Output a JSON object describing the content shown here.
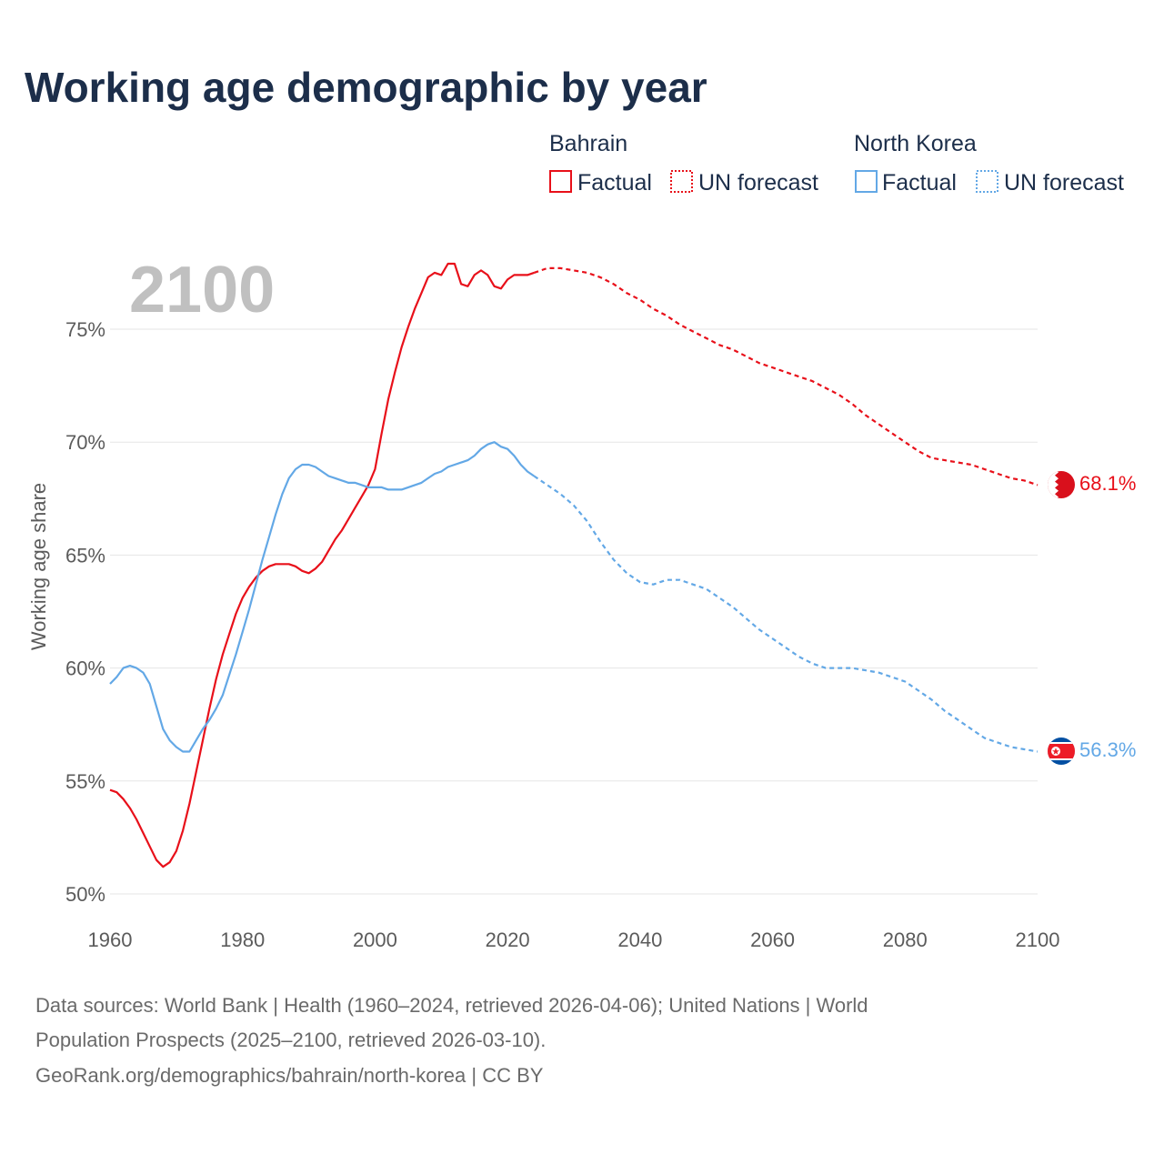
{
  "title": "Working age demographic by year",
  "year_label": "2100",
  "legend": {
    "groups": [
      {
        "country": "Bahrain",
        "color": "#e8101a",
        "factual": "Factual",
        "forecast": "UN forecast"
      },
      {
        "country": "North Korea",
        "color": "#63a8e6",
        "factual": "Factual",
        "forecast": "UN forecast"
      }
    ]
  },
  "sources": {
    "line1": "Data sources: World Bank | Health (1960–2024, retrieved 2026-04-06); United Nations | World",
    "line2": "Population Prospects (2025–2100, retrieved 2026-03-10).",
    "line3": "GeoRank.org/demographics/bahrain/north-korea | CC BY"
  },
  "chart_data": {
    "type": "line",
    "title": "Working age demographic by year",
    "xlabel": "",
    "ylabel": "Working age share",
    "xlim": [
      1960,
      2100
    ],
    "ylim": [
      50,
      78
    ],
    "x_ticks": [
      1960,
      1980,
      2000,
      2020,
      2040,
      2060,
      2080,
      2100
    ],
    "y_ticks": [
      50,
      55,
      60,
      65,
      70,
      75
    ],
    "y_tick_labels": [
      "50%",
      "55%",
      "60%",
      "65%",
      "70%",
      "75%"
    ],
    "grid": true,
    "forecast_start": 2024,
    "series": [
      {
        "name": "Bahrain",
        "color": "#e8101a",
        "end_label": "68.1%",
        "flag": "bahrain-flag",
        "points": [
          [
            1960,
            54.6
          ],
          [
            1961,
            54.5
          ],
          [
            1962,
            54.2
          ],
          [
            1963,
            53.8
          ],
          [
            1964,
            53.3
          ],
          [
            1965,
            52.7
          ],
          [
            1966,
            52.1
          ],
          [
            1967,
            51.5
          ],
          [
            1968,
            51.2
          ],
          [
            1969,
            51.4
          ],
          [
            1970,
            51.9
          ],
          [
            1971,
            52.8
          ],
          [
            1972,
            54.0
          ],
          [
            1973,
            55.4
          ],
          [
            1974,
            56.8
          ],
          [
            1975,
            58.2
          ],
          [
            1976,
            59.5
          ],
          [
            1977,
            60.6
          ],
          [
            1978,
            61.5
          ],
          [
            1979,
            62.4
          ],
          [
            1980,
            63.1
          ],
          [
            1981,
            63.6
          ],
          [
            1982,
            64.0
          ],
          [
            1983,
            64.3
          ],
          [
            1984,
            64.5
          ],
          [
            1985,
            64.6
          ],
          [
            1986,
            64.6
          ],
          [
            1987,
            64.6
          ],
          [
            1988,
            64.5
          ],
          [
            1989,
            64.3
          ],
          [
            1990,
            64.2
          ],
          [
            1991,
            64.4
          ],
          [
            1992,
            64.7
          ],
          [
            1993,
            65.2
          ],
          [
            1994,
            65.7
          ],
          [
            1995,
            66.1
          ],
          [
            1996,
            66.6
          ],
          [
            1997,
            67.1
          ],
          [
            1998,
            67.6
          ],
          [
            1999,
            68.1
          ],
          [
            2000,
            68.8
          ],
          [
            2001,
            70.4
          ],
          [
            2002,
            71.9
          ],
          [
            2003,
            73.1
          ],
          [
            2004,
            74.2
          ],
          [
            2005,
            75.1
          ],
          [
            2006,
            75.9
          ],
          [
            2007,
            76.6
          ],
          [
            2008,
            77.3
          ],
          [
            2009,
            77.5
          ],
          [
            2010,
            77.4
          ],
          [
            2011,
            77.9
          ],
          [
            2012,
            77.9
          ],
          [
            2013,
            77.0
          ],
          [
            2014,
            76.9
          ],
          [
            2015,
            77.4
          ],
          [
            2016,
            77.6
          ],
          [
            2017,
            77.4
          ],
          [
            2018,
            76.9
          ],
          [
            2019,
            76.8
          ],
          [
            2020,
            77.2
          ],
          [
            2021,
            77.4
          ],
          [
            2022,
            77.4
          ],
          [
            2023,
            77.4
          ],
          [
            2024,
            77.5
          ],
          [
            2026,
            77.7
          ],
          [
            2028,
            77.7
          ],
          [
            2030,
            77.6
          ],
          [
            2032,
            77.5
          ],
          [
            2034,
            77.3
          ],
          [
            2036,
            77.0
          ],
          [
            2038,
            76.6
          ],
          [
            2040,
            76.3
          ],
          [
            2042,
            75.9
          ],
          [
            2044,
            75.6
          ],
          [
            2046,
            75.2
          ],
          [
            2048,
            74.9
          ],
          [
            2050,
            74.6
          ],
          [
            2052,
            74.3
          ],
          [
            2054,
            74.1
          ],
          [
            2056,
            73.8
          ],
          [
            2058,
            73.5
          ],
          [
            2060,
            73.3
          ],
          [
            2062,
            73.1
          ],
          [
            2064,
            72.9
          ],
          [
            2066,
            72.7
          ],
          [
            2068,
            72.4
          ],
          [
            2070,
            72.1
          ],
          [
            2072,
            71.7
          ],
          [
            2074,
            71.2
          ],
          [
            2076,
            70.8
          ],
          [
            2078,
            70.4
          ],
          [
            2080,
            70.0
          ],
          [
            2082,
            69.6
          ],
          [
            2084,
            69.3
          ],
          [
            2086,
            69.2
          ],
          [
            2088,
            69.1
          ],
          [
            2090,
            69.0
          ],
          [
            2092,
            68.8
          ],
          [
            2094,
            68.6
          ],
          [
            2096,
            68.4
          ],
          [
            2098,
            68.3
          ],
          [
            2100,
            68.1
          ]
        ]
      },
      {
        "name": "North Korea",
        "color": "#63a8e6",
        "end_label": "56.3%",
        "flag": "north-korea-flag",
        "points": [
          [
            1960,
            59.3
          ],
          [
            1961,
            59.6
          ],
          [
            1962,
            60.0
          ],
          [
            1963,
            60.1
          ],
          [
            1964,
            60.0
          ],
          [
            1965,
            59.8
          ],
          [
            1966,
            59.3
          ],
          [
            1967,
            58.3
          ],
          [
            1968,
            57.3
          ],
          [
            1969,
            56.8
          ],
          [
            1970,
            56.5
          ],
          [
            1971,
            56.3
          ],
          [
            1972,
            56.3
          ],
          [
            1973,
            56.8
          ],
          [
            1974,
            57.3
          ],
          [
            1975,
            57.7
          ],
          [
            1976,
            58.2
          ],
          [
            1977,
            58.8
          ],
          [
            1978,
            59.7
          ],
          [
            1979,
            60.6
          ],
          [
            1980,
            61.6
          ],
          [
            1981,
            62.6
          ],
          [
            1982,
            63.7
          ],
          [
            1983,
            64.8
          ],
          [
            1984,
            65.8
          ],
          [
            1985,
            66.8
          ],
          [
            1986,
            67.7
          ],
          [
            1987,
            68.4
          ],
          [
            1988,
            68.8
          ],
          [
            1989,
            69.0
          ],
          [
            1990,
            69.0
          ],
          [
            1991,
            68.9
          ],
          [
            1992,
            68.7
          ],
          [
            1993,
            68.5
          ],
          [
            1994,
            68.4
          ],
          [
            1995,
            68.3
          ],
          [
            1996,
            68.2
          ],
          [
            1997,
            68.2
          ],
          [
            1998,
            68.1
          ],
          [
            1999,
            68.0
          ],
          [
            2000,
            68.0
          ],
          [
            2001,
            68.0
          ],
          [
            2002,
            67.9
          ],
          [
            2003,
            67.9
          ],
          [
            2004,
            67.9
          ],
          [
            2005,
            68.0
          ],
          [
            2006,
            68.1
          ],
          [
            2007,
            68.2
          ],
          [
            2008,
            68.4
          ],
          [
            2009,
            68.6
          ],
          [
            2010,
            68.7
          ],
          [
            2011,
            68.9
          ],
          [
            2012,
            69.0
          ],
          [
            2013,
            69.1
          ],
          [
            2014,
            69.2
          ],
          [
            2015,
            69.4
          ],
          [
            2016,
            69.7
          ],
          [
            2017,
            69.9
          ],
          [
            2018,
            70.0
          ],
          [
            2019,
            69.8
          ],
          [
            2020,
            69.7
          ],
          [
            2021,
            69.4
          ],
          [
            2022,
            69.0
          ],
          [
            2023,
            68.7
          ],
          [
            2024,
            68.5
          ],
          [
            2026,
            68.1
          ],
          [
            2028,
            67.7
          ],
          [
            2030,
            67.2
          ],
          [
            2032,
            66.5
          ],
          [
            2034,
            65.6
          ],
          [
            2036,
            64.8
          ],
          [
            2038,
            64.2
          ],
          [
            2040,
            63.8
          ],
          [
            2042,
            63.7
          ],
          [
            2044,
            63.9
          ],
          [
            2046,
            63.9
          ],
          [
            2048,
            63.7
          ],
          [
            2050,
            63.5
          ],
          [
            2052,
            63.1
          ],
          [
            2054,
            62.7
          ],
          [
            2056,
            62.2
          ],
          [
            2058,
            61.7
          ],
          [
            2060,
            61.3
          ],
          [
            2062,
            60.9
          ],
          [
            2064,
            60.5
          ],
          [
            2066,
            60.2
          ],
          [
            2068,
            60.0
          ],
          [
            2070,
            60.0
          ],
          [
            2072,
            60.0
          ],
          [
            2074,
            59.9
          ],
          [
            2076,
            59.8
          ],
          [
            2078,
            59.6
          ],
          [
            2080,
            59.4
          ],
          [
            2082,
            59.0
          ],
          [
            2084,
            58.6
          ],
          [
            2086,
            58.1
          ],
          [
            2088,
            57.7
          ],
          [
            2090,
            57.3
          ],
          [
            2092,
            56.9
          ],
          [
            2094,
            56.7
          ],
          [
            2096,
            56.5
          ],
          [
            2098,
            56.4
          ],
          [
            2100,
            56.3
          ]
        ]
      }
    ]
  }
}
